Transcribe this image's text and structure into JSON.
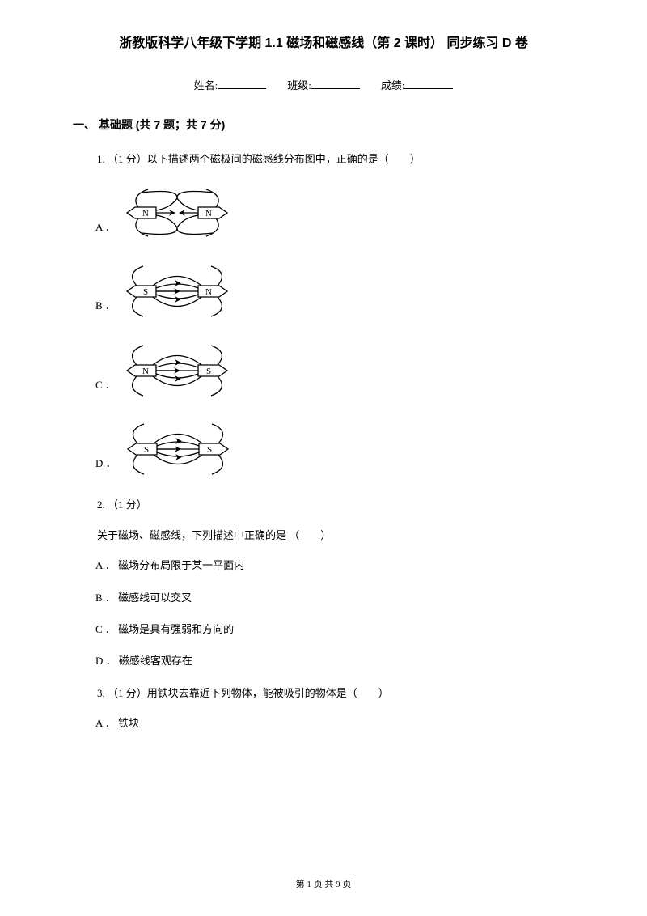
{
  "title": "浙教版科学八年级下学期 1.1 磁场和磁感线（第 2 课时） 同步练习 D 卷",
  "info": {
    "name_label": "姓名:",
    "class_label": "班级:",
    "score_label": "成绩:"
  },
  "section": {
    "header": "一、 基础题 (共 7 题；共 7 分)"
  },
  "q1": {
    "stem": "1. （1 分）以下描述两个磁极间的磁感线分布图中，正确的是（　　）",
    "options": {
      "A": {
        "label": "A ．",
        "left": "N",
        "right": "N",
        "type": "repel"
      },
      "B": {
        "label": "B ．",
        "left": "S",
        "right": "N",
        "type": "attract_in"
      },
      "C": {
        "label": "C ．",
        "left": "N",
        "right": "S",
        "type": "attract_out"
      },
      "D": {
        "label": "D ．",
        "left": "S",
        "right": "S",
        "type": "attract_out"
      }
    },
    "diagram_style": {
      "width": 140,
      "height": 80,
      "stroke": "#000000",
      "stroke_width": 1.3,
      "arrow_size": 4
    }
  },
  "q2": {
    "stem": "2. （1 分）",
    "body": "关于磁场、磁感线，下列描述中正确的是 （　　）",
    "A": "A ． 磁场分布局限于某一平面内",
    "B": "B ． 磁感线可以交叉",
    "C": "C ． 磁场是具有强弱和方向的",
    "D": "D ． 磁感线客观存在"
  },
  "q3": {
    "stem": "3. （1 分）用铁块去靠近下列物体，能被吸引的物体是（　　）",
    "A": "A ． 铁块"
  },
  "footer": "第 1 页 共 9 页"
}
